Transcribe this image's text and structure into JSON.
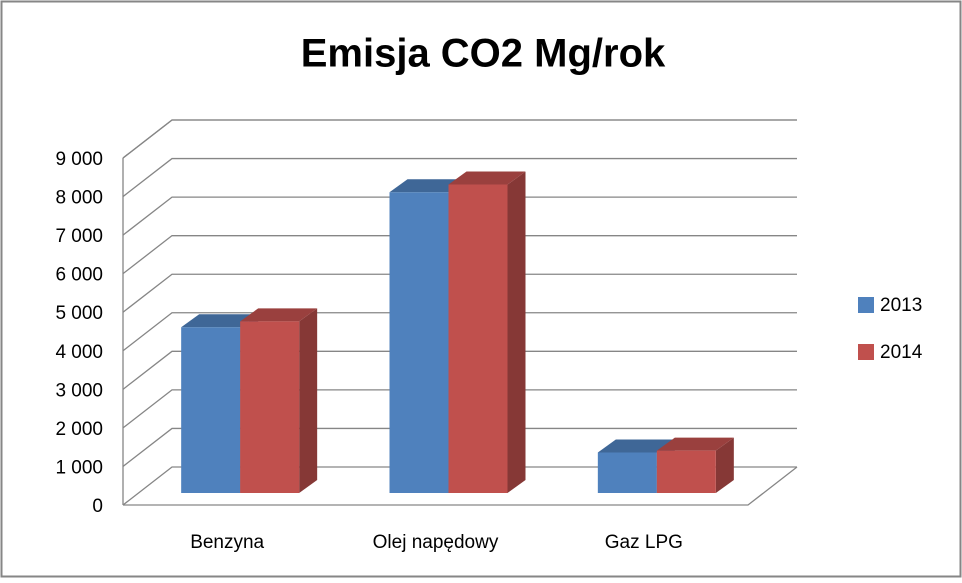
{
  "chart_data": {
    "type": "bar3d",
    "title": "Emisja CO2 Mg/rok",
    "categories": [
      "Benzyna",
      "Olej napędowy",
      "Gaz LPG"
    ],
    "series": [
      {
        "name": "2013",
        "color": "#4f81bd",
        "values": [
          4300,
          7800,
          1050
        ]
      },
      {
        "name": "2014",
        "color": "#c0504d",
        "values": [
          4450,
          8000,
          1100
        ]
      }
    ],
    "ylim": [
      0,
      9000
    ],
    "yticks": [
      0,
      {
        "value": 1000,
        "label": "1 000"
      },
      {
        "value": 2000,
        "label": "2 000"
      },
      {
        "value": 3000,
        "label": "3 000"
      },
      {
        "value": 4000,
        "label": "4 000"
      },
      {
        "value": 5000,
        "label": "5 000"
      },
      {
        "value": 6000,
        "label": "6 000"
      },
      {
        "value": 7000,
        "label": "7 000"
      },
      {
        "value": 8000,
        "label": "8 000"
      },
      {
        "value": 9000,
        "label": "9 000"
      }
    ],
    "grid": true,
    "legend": "right"
  }
}
